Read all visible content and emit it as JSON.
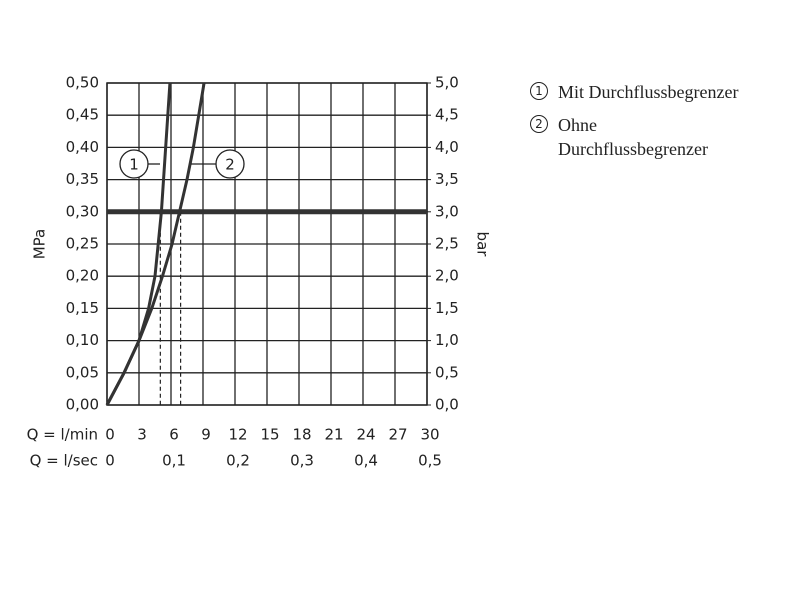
{
  "chart_data": {
    "type": "line",
    "xlabel": "Q = l/min",
    "x2label": "Q = l/sec",
    "ylabel": "MPa",
    "y2label": "bar",
    "xlim": [
      0,
      30
    ],
    "xticks": [
      0,
      3,
      6,
      9,
      12,
      15,
      18,
      21,
      24,
      27,
      30
    ],
    "x2lim": [
      0,
      0.5
    ],
    "x2ticks": [
      0,
      {
        "value": 0.1,
        "label": "0,1"
      },
      {
        "value": 0.2,
        "label": "0,2"
      },
      {
        "value": 0.3,
        "label": "0,3"
      },
      {
        "value": 0.4,
        "label": "0,4"
      },
      {
        "value": 0.5,
        "label": "0,5"
      }
    ],
    "ylim": [
      0,
      0.5
    ],
    "yticks": [
      {
        "value": 0,
        "label": "0,00"
      },
      {
        "value": 0.05,
        "label": "0,05"
      },
      {
        "value": 0.1,
        "label": "0,10"
      },
      {
        "value": 0.15,
        "label": "0,15"
      },
      {
        "value": 0.2,
        "label": "0,20"
      },
      {
        "value": 0.25,
        "label": "0,25"
      },
      {
        "value": 0.3,
        "label": "0,30"
      },
      {
        "value": 0.35,
        "label": "0,35"
      },
      {
        "value": 0.4,
        "label": "0,40"
      },
      {
        "value": 0.45,
        "label": "0,45"
      },
      {
        "value": 0.5,
        "label": "0,50"
      }
    ],
    "y2lim": [
      0,
      5
    ],
    "y2ticks": [
      {
        "value": 0,
        "label": "0,0"
      },
      {
        "value": 0.5,
        "label": "0,5"
      },
      {
        "value": 1,
        "label": "1,0"
      },
      {
        "value": 1.5,
        "label": "1,5"
      },
      {
        "value": 2,
        "label": "2,0"
      },
      {
        "value": 2.5,
        "label": "2,5"
      },
      {
        "value": 3,
        "label": "3,0"
      },
      {
        "value": 3.5,
        "label": "3,5"
      },
      {
        "value": 4,
        "label": "4,0"
      },
      {
        "value": 4.5,
        "label": "4,5"
      },
      {
        "value": 5,
        "label": "5,0"
      }
    ],
    "grid": true,
    "reference_y": 0.3,
    "reference_x": [
      5.0,
      6.9
    ],
    "series": [
      {
        "id": "1",
        "name": "Mit Durchflussbegrenzer",
        "color": "#333333",
        "x": [
          0,
          1.6,
          3,
          3.9,
          4.5,
          5.1,
          5.5,
          5.9
        ],
        "values": [
          0,
          0.05,
          0.1,
          0.15,
          0.2,
          0.3,
          0.4,
          0.5
        ]
      },
      {
        "id": "2",
        "name": "Ohne Durchflussbegrenzer",
        "color": "#333333",
        "x": [
          0,
          1.6,
          3,
          4.2,
          5.2,
          6.1,
          6.8,
          7.5,
          8.1,
          8.6,
          9.1
        ],
        "values": [
          0,
          0.05,
          0.1,
          0.15,
          0.2,
          0.25,
          0.3,
          0.35,
          0.4,
          0.45,
          0.5
        ]
      }
    ]
  }
}
